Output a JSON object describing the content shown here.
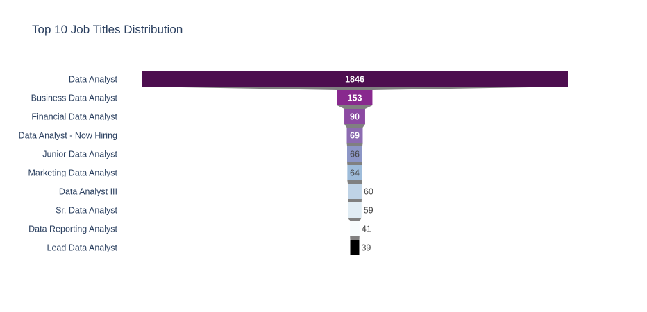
{
  "chart_data": {
    "type": "funnel",
    "title": "Top 10 Job Titles Distribution",
    "categories": [
      "Data Analyst",
      "Business Data Analyst",
      "Financial Data Analyst",
      "Data Analyst - Now Hiring",
      "Junior Data Analyst",
      "Marketing Data Analyst",
      "Data Analyst III",
      "Sr. Data Analyst",
      "Data Reporting Analyst",
      "Lead Data Analyst"
    ],
    "values": [
      1846,
      153,
      90,
      69,
      66,
      64,
      60,
      59,
      41,
      39
    ],
    "colors": [
      "#4d0e4f",
      "#88298e",
      "#8c4aa2",
      "#8c6bb1",
      "#8c96c6",
      "#9ebcda",
      "#bfd3e6",
      "#e0ecf4",
      "#f7fcfd",
      "#000000"
    ],
    "label_colors": [
      "#ffffff",
      "#ffffff",
      "#ffffff",
      "#ffffff",
      "#444444",
      "#444444",
      "#444444",
      "#444444",
      "#444444",
      "#444444"
    ],
    "connector_color": "#808080"
  }
}
